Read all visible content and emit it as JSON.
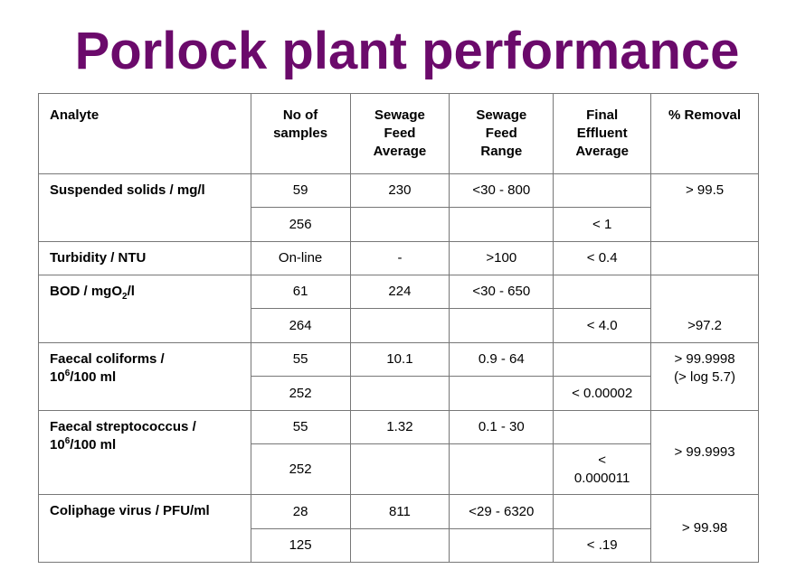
{
  "title": "Porlock plant performance",
  "table": {
    "header": [
      [
        "Analyte"
      ],
      [
        "No of",
        "samples"
      ],
      [
        "Sewage",
        "Feed",
        "Average"
      ],
      [
        "Sewage",
        "Feed",
        "Range"
      ],
      [
        "Final",
        "Effluent",
        "Average"
      ],
      [
        "% Removal"
      ]
    ],
    "groups": [
      {
        "analyte": [
          "Suspended solids / mg/l"
        ],
        "removal": [
          "> 99.5"
        ],
        "rows": [
          {
            "samples": "59",
            "feed_average": "230",
            "feed_range": "<30 - 800"
          },
          {
            "samples": "256",
            "effluent_average": [
              "< 1"
            ]
          }
        ]
      },
      {
        "analyte": [
          "Turbidity / NTU"
        ],
        "rows": [
          {
            "samples": "On-line",
            "feed_average": "-",
            "feed_range": ">100",
            "effluent_average": [
              "< 0.4"
            ]
          }
        ]
      },
      {
        "analyte": [
          "BOD / mgO",
          "2",
          "/l"
        ],
        "removal": [
          ">97.2"
        ],
        "rows": [
          {
            "samples": "61",
            "feed_average": "224",
            "feed_range": "<30 - 650"
          },
          {
            "samples": "264",
            "effluent_average": [
              "< 4.0"
            ]
          }
        ]
      },
      {
        "analyte": [
          "Faecal coliforms /",
          "10",
          "6",
          "/100 ml"
        ],
        "removal": [
          "> 99.9998",
          "(> log 5.7)"
        ],
        "rows": [
          {
            "samples": "55",
            "feed_average": "10.1",
            "feed_range": "0.9 - 64"
          },
          {
            "samples": "252",
            "effluent_average": [
              "< 0.00002"
            ]
          }
        ]
      },
      {
        "analyte": [
          "Faecal streptococcus /",
          "10",
          "6",
          "/100 ml"
        ],
        "removal": [
          "> 99.9993"
        ],
        "rows": [
          {
            "samples": "55",
            "feed_average": "1.32",
            "feed_range": "0.1 - 30"
          },
          {
            "samples": "252",
            "effluent_average": [
              "<",
              "0.000011"
            ]
          }
        ]
      },
      {
        "analyte": [
          "Coliphage virus / PFU/ml"
        ],
        "removal": [
          "> 99.98"
        ],
        "rows": [
          {
            "samples": "28",
            "feed_average": "811",
            "feed_range": "<29 - 6320"
          },
          {
            "samples": "125",
            "effluent_average": [
              "< .19"
            ]
          }
        ]
      }
    ]
  }
}
